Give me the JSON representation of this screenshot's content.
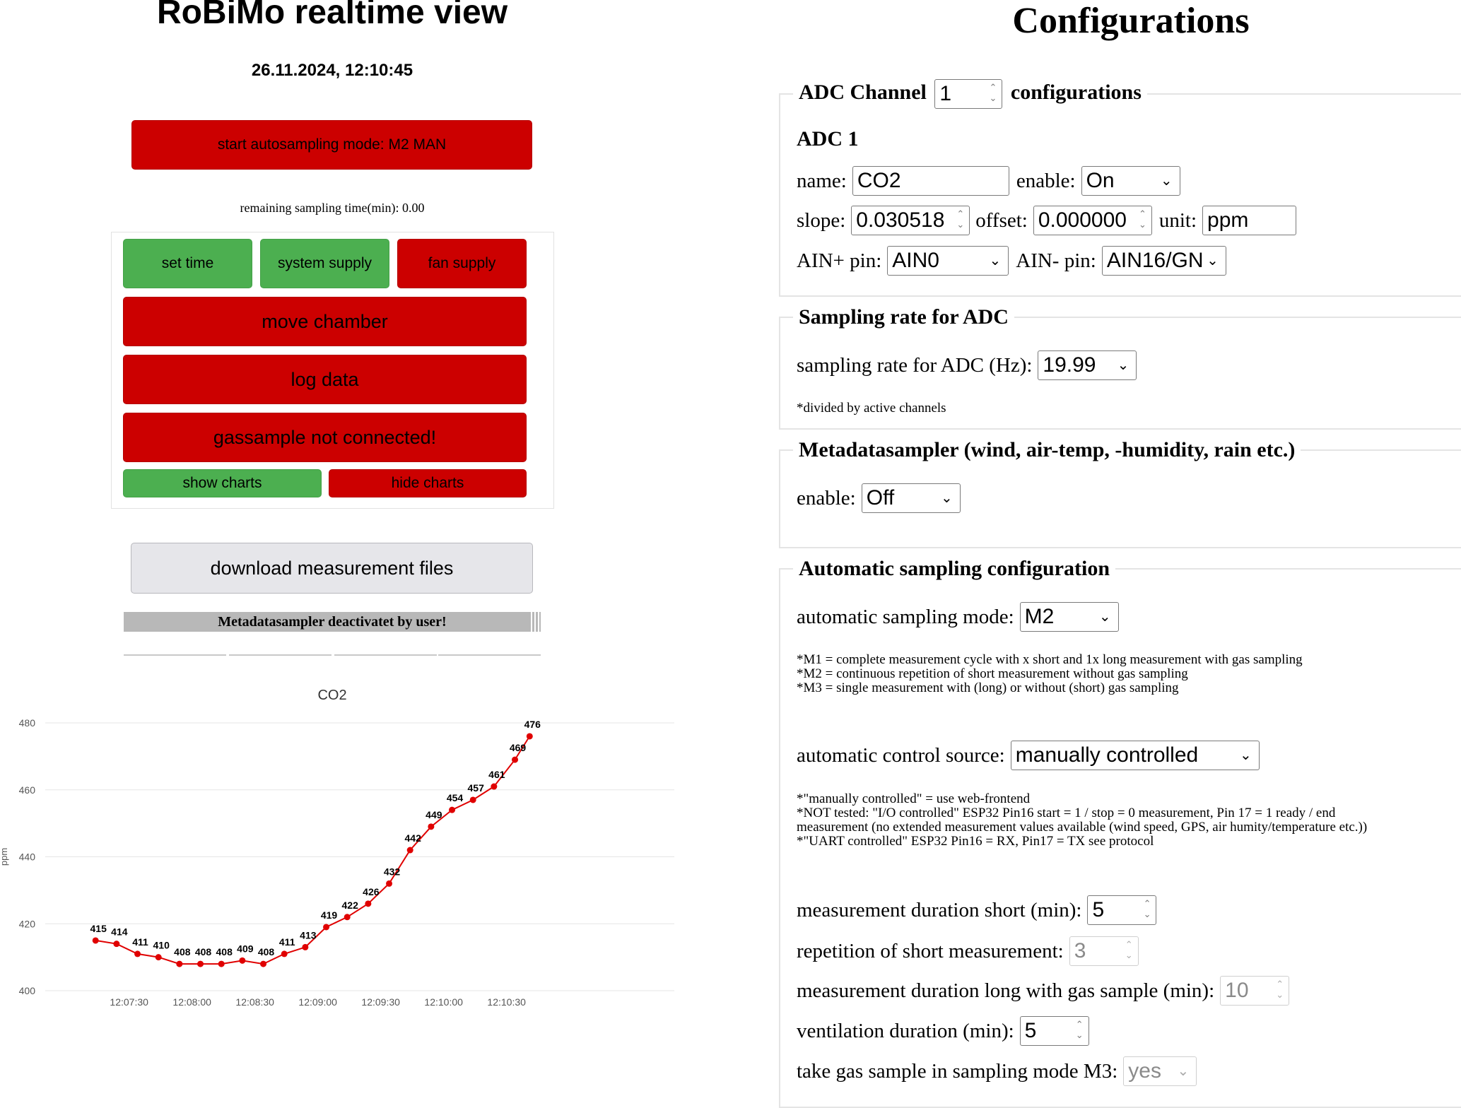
{
  "left": {
    "title": "RoBiMo realtime view",
    "datetime": "26.11.2024, 12:10:45",
    "autosampling_button": "start autosampling mode: M2 MAN",
    "remaining_text": "remaining sampling time(min): 0.00",
    "buttons": {
      "set_time": "set time",
      "system_supply": "system supply",
      "fan_supply": "fan supply",
      "move_chamber": "move chamber",
      "log_data": "log data",
      "gassample": "gassample not connected!",
      "show_charts": "show charts",
      "hide_charts": "hide charts",
      "download": "download measurement files"
    },
    "metadata_status": "Metadatasampler deactivatet by user!",
    "colors": {
      "red": "#cc0000",
      "green": "#4caf50",
      "grey": "#e6e6ea"
    }
  },
  "chart_data": {
    "type": "line",
    "title": "CO2",
    "ylabel": "ppm",
    "xlabel": "",
    "ylim": [
      400,
      480
    ],
    "yticks": [
      400,
      420,
      440,
      460,
      480
    ],
    "xticks": [
      "12:07:30",
      "12:08:00",
      "12:08:30",
      "12:09:00",
      "12:09:30",
      "12:10:00",
      "12:10:30"
    ],
    "grid": true,
    "color": "#e00000",
    "series": [
      {
        "x": [
          "12:07:14",
          "12:07:24",
          "12:07:34",
          "12:07:44",
          "12:07:54",
          "12:08:04",
          "12:08:14",
          "12:08:24",
          "12:08:34",
          "12:08:44",
          "12:08:54",
          "12:09:04",
          "12:09:14",
          "12:09:24",
          "12:09:34",
          "12:09:44",
          "12:09:54",
          "12:10:04",
          "12:10:14",
          "12:10:24",
          "12:10:34",
          "12:10:41"
        ],
        "values": [
          415,
          414,
          411,
          410,
          408,
          408,
          408,
          409,
          408,
          411,
          413,
          419,
          422,
          426,
          432,
          442,
          449,
          454,
          457,
          461,
          469,
          476
        ]
      }
    ]
  },
  "config": {
    "title": "Configurations",
    "adc": {
      "legend_prefix": "ADC Channel",
      "channel": "1",
      "legend_suffix": "configurations",
      "heading": "ADC 1",
      "name_label": "name:",
      "name_value": "CO2",
      "enable_label": "enable:",
      "enable_value": "On",
      "slope_label": "slope:",
      "slope_value": "0.030518",
      "offset_label": "offset:",
      "offset_value": "0.000000",
      "unit_label": "unit:",
      "unit_value": "ppm",
      "ainp_label": "AIN+ pin:",
      "ainp_value": "AIN0",
      "ainm_label": "AIN- pin:",
      "ainm_value": "AIN16/GN"
    },
    "sampling": {
      "legend": "Sampling rate for ADC",
      "rate_label": "sampling rate for ADC (Hz):",
      "rate_value": "19.99",
      "note": "*divided by active channels"
    },
    "metadata": {
      "legend": "Metadatasampler (wind, air-temp, -humidity, rain etc.)",
      "enable_label": "enable:",
      "enable_value": "Off"
    },
    "auto": {
      "legend": "Automatic sampling configuration",
      "mode_label": "automatic sampling mode:",
      "mode_value": "M2",
      "mode_notes": [
        "*M1 = complete measurement cycle with x short and 1x long measurement with gas sampling",
        "*M2 = continuous repetition of short measurement without gas sampling",
        "*M3 = single measurement with (long) or without (short) gas sampling"
      ],
      "control_label": "automatic control source:",
      "control_value": "manually controlled",
      "control_notes": [
        "*\"manually controlled\" = use web-frontend",
        "*NOT tested: \"I/O controlled\" ESP32 Pin16 start = 1 / stop = 0 measurement, Pin 17 = 1 ready / end",
        "measurement (no extended measurement values available (wind speed, GPS, air humity/temperature etc.))",
        "*\"UART controlled\" ESP32 Pin16 = RX, Pin17 = TX see protocol"
      ],
      "short_label": "measurement duration short (min):",
      "short_value": "5",
      "repetition_label": "repetition of short measurement:",
      "repetition_value": "3",
      "long_label": "measurement duration long with gas sample (min):",
      "long_value": "10",
      "ventilation_label": "ventilation duration (min):",
      "ventilation_value": "5",
      "gas_label": "take gas sample in sampling mode M3:",
      "gas_value": "yes"
    }
  }
}
